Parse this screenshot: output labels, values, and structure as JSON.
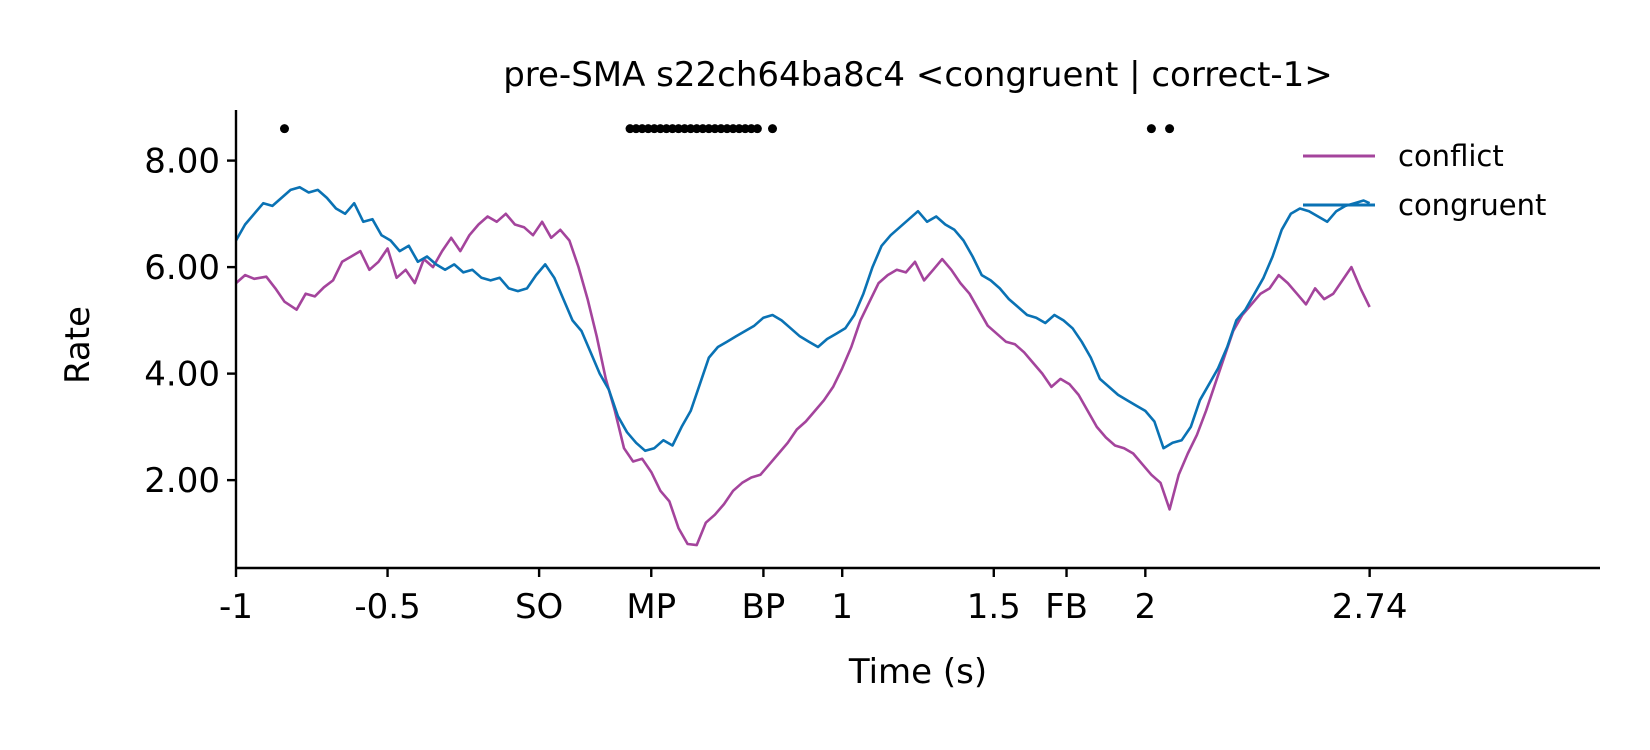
{
  "chart_data": {
    "type": "line",
    "title": "pre-SMA s22ch64ba8c4 <congruent | correct-1>",
    "xlabel": "Time (s)",
    "ylabel": "Rate",
    "xlim": [
      -1,
      3.5
    ],
    "ylim": [
      0.35,
      8.95
    ],
    "x_ticks": [
      {
        "value": -1,
        "label": "-1"
      },
      {
        "value": -0.5,
        "label": "-0.5"
      },
      {
        "value": 0,
        "label": "SO"
      },
      {
        "value": 0.37,
        "label": "MP"
      },
      {
        "value": 0.74,
        "label": "BP"
      },
      {
        "value": 1,
        "label": "1"
      },
      {
        "value": 1.5,
        "label": "1.5"
      },
      {
        "value": 1.74,
        "label": "FB"
      },
      {
        "value": 2,
        "label": "2"
      },
      {
        "value": 2.74,
        "label": "2.74"
      }
    ],
    "y_ticks": [
      {
        "value": 2,
        "label": "2.00"
      },
      {
        "value": 4,
        "label": "4.00"
      },
      {
        "value": 6,
        "label": "6.00"
      },
      {
        "value": 8,
        "label": "8.00"
      }
    ],
    "legend": {
      "placement": "top-right"
    },
    "significance_markers": {
      "y": 8.6,
      "x": [
        -0.84,
        0.3,
        0.32,
        0.34,
        0.36,
        0.38,
        0.4,
        0.42,
        0.44,
        0.46,
        0.48,
        0.5,
        0.52,
        0.54,
        0.56,
        0.58,
        0.6,
        0.62,
        0.64,
        0.66,
        0.68,
        0.7,
        0.72,
        0.77,
        2.02,
        2.08
      ]
    },
    "series": [
      {
        "name": "conflict",
        "color": "#a4449c",
        "points": [
          [
            -1.0,
            5.7
          ],
          [
            -0.97,
            5.85
          ],
          [
            -0.94,
            5.78
          ],
          [
            -0.9,
            5.82
          ],
          [
            -0.87,
            5.6
          ],
          [
            -0.84,
            5.35
          ],
          [
            -0.8,
            5.2
          ],
          [
            -0.77,
            5.5
          ],
          [
            -0.74,
            5.45
          ],
          [
            -0.71,
            5.62
          ],
          [
            -0.68,
            5.75
          ],
          [
            -0.65,
            6.1
          ],
          [
            -0.62,
            6.2
          ],
          [
            -0.59,
            6.3
          ],
          [
            -0.56,
            5.95
          ],
          [
            -0.53,
            6.1
          ],
          [
            -0.5,
            6.35
          ],
          [
            -0.47,
            5.8
          ],
          [
            -0.44,
            5.95
          ],
          [
            -0.41,
            5.7
          ],
          [
            -0.38,
            6.15
          ],
          [
            -0.35,
            6.0
          ],
          [
            -0.32,
            6.3
          ],
          [
            -0.29,
            6.55
          ],
          [
            -0.26,
            6.3
          ],
          [
            -0.23,
            6.6
          ],
          [
            -0.2,
            6.8
          ],
          [
            -0.17,
            6.95
          ],
          [
            -0.14,
            6.85
          ],
          [
            -0.11,
            7.0
          ],
          [
            -0.08,
            6.8
          ],
          [
            -0.05,
            6.75
          ],
          [
            -0.02,
            6.6
          ],
          [
            0.01,
            6.85
          ],
          [
            0.04,
            6.55
          ],
          [
            0.07,
            6.7
          ],
          [
            0.1,
            6.5
          ],
          [
            0.13,
            6.0
          ],
          [
            0.16,
            5.4
          ],
          [
            0.19,
            4.7
          ],
          [
            0.22,
            3.9
          ],
          [
            0.25,
            3.3
          ],
          [
            0.28,
            2.6
          ],
          [
            0.31,
            2.35
          ],
          [
            0.34,
            2.4
          ],
          [
            0.37,
            2.15
          ],
          [
            0.4,
            1.8
          ],
          [
            0.43,
            1.6
          ],
          [
            0.46,
            1.1
          ],
          [
            0.49,
            0.8
          ],
          [
            0.52,
            0.78
          ],
          [
            0.55,
            1.2
          ],
          [
            0.58,
            1.35
          ],
          [
            0.61,
            1.55
          ],
          [
            0.64,
            1.8
          ],
          [
            0.67,
            1.95
          ],
          [
            0.7,
            2.05
          ],
          [
            0.73,
            2.1
          ],
          [
            0.76,
            2.3
          ],
          [
            0.79,
            2.5
          ],
          [
            0.82,
            2.7
          ],
          [
            0.85,
            2.95
          ],
          [
            0.88,
            3.1
          ],
          [
            0.91,
            3.3
          ],
          [
            0.94,
            3.5
          ],
          [
            0.97,
            3.75
          ],
          [
            1.0,
            4.1
          ],
          [
            1.03,
            4.5
          ],
          [
            1.06,
            5.0
          ],
          [
            1.09,
            5.35
          ],
          [
            1.12,
            5.7
          ],
          [
            1.15,
            5.85
          ],
          [
            1.18,
            5.95
          ],
          [
            1.21,
            5.9
          ],
          [
            1.24,
            6.1
          ],
          [
            1.27,
            5.75
          ],
          [
            1.3,
            5.95
          ],
          [
            1.33,
            6.15
          ],
          [
            1.36,
            5.95
          ],
          [
            1.39,
            5.7
          ],
          [
            1.42,
            5.5
          ],
          [
            1.45,
            5.2
          ],
          [
            1.48,
            4.9
          ],
          [
            1.51,
            4.75
          ],
          [
            1.54,
            4.6
          ],
          [
            1.57,
            4.55
          ],
          [
            1.6,
            4.4
          ],
          [
            1.63,
            4.2
          ],
          [
            1.66,
            4.0
          ],
          [
            1.69,
            3.75
          ],
          [
            1.72,
            3.9
          ],
          [
            1.75,
            3.8
          ],
          [
            1.78,
            3.6
          ],
          [
            1.81,
            3.3
          ],
          [
            1.84,
            3.0
          ],
          [
            1.87,
            2.8
          ],
          [
            1.9,
            2.65
          ],
          [
            1.93,
            2.6
          ],
          [
            1.96,
            2.5
          ],
          [
            1.99,
            2.3
          ],
          [
            2.02,
            2.1
          ],
          [
            2.05,
            1.95
          ],
          [
            2.08,
            1.45
          ],
          [
            2.11,
            2.1
          ],
          [
            2.14,
            2.5
          ],
          [
            2.17,
            2.85
          ],
          [
            2.2,
            3.3
          ],
          [
            2.23,
            3.8
          ],
          [
            2.26,
            4.3
          ],
          [
            2.29,
            4.8
          ],
          [
            2.32,
            5.1
          ],
          [
            2.35,
            5.3
          ],
          [
            2.38,
            5.5
          ],
          [
            2.41,
            5.6
          ],
          [
            2.44,
            5.85
          ],
          [
            2.47,
            5.7
          ],
          [
            2.5,
            5.5
          ],
          [
            2.53,
            5.3
          ],
          [
            2.56,
            5.6
          ],
          [
            2.59,
            5.4
          ],
          [
            2.62,
            5.5
          ],
          [
            2.65,
            5.75
          ],
          [
            2.68,
            6.0
          ],
          [
            2.71,
            5.6
          ],
          [
            2.74,
            5.25
          ]
        ]
      },
      {
        "name": "congruent",
        "color": "#0a72b4",
        "points": [
          [
            -1.0,
            6.5
          ],
          [
            -0.97,
            6.8
          ],
          [
            -0.94,
            7.0
          ],
          [
            -0.91,
            7.2
          ],
          [
            -0.88,
            7.15
          ],
          [
            -0.85,
            7.3
          ],
          [
            -0.82,
            7.45
          ],
          [
            -0.79,
            7.5
          ],
          [
            -0.76,
            7.4
          ],
          [
            -0.73,
            7.45
          ],
          [
            -0.7,
            7.3
          ],
          [
            -0.67,
            7.1
          ],
          [
            -0.64,
            7.0
          ],
          [
            -0.61,
            7.2
          ],
          [
            -0.58,
            6.85
          ],
          [
            -0.55,
            6.9
          ],
          [
            -0.52,
            6.6
          ],
          [
            -0.49,
            6.5
          ],
          [
            -0.46,
            6.3
          ],
          [
            -0.43,
            6.4
          ],
          [
            -0.4,
            6.1
          ],
          [
            -0.37,
            6.2
          ],
          [
            -0.34,
            6.05
          ],
          [
            -0.31,
            5.95
          ],
          [
            -0.28,
            6.05
          ],
          [
            -0.25,
            5.9
          ],
          [
            -0.22,
            5.95
          ],
          [
            -0.19,
            5.8
          ],
          [
            -0.16,
            5.75
          ],
          [
            -0.13,
            5.8
          ],
          [
            -0.1,
            5.6
          ],
          [
            -0.07,
            5.55
          ],
          [
            -0.04,
            5.6
          ],
          [
            -0.01,
            5.85
          ],
          [
            0.02,
            6.05
          ],
          [
            0.05,
            5.8
          ],
          [
            0.08,
            5.4
          ],
          [
            0.11,
            5.0
          ],
          [
            0.14,
            4.8
          ],
          [
            0.17,
            4.4
          ],
          [
            0.2,
            4.0
          ],
          [
            0.23,
            3.7
          ],
          [
            0.26,
            3.2
          ],
          [
            0.29,
            2.9
          ],
          [
            0.32,
            2.7
          ],
          [
            0.35,
            2.55
          ],
          [
            0.38,
            2.6
          ],
          [
            0.41,
            2.75
          ],
          [
            0.44,
            2.65
          ],
          [
            0.47,
            3.0
          ],
          [
            0.5,
            3.3
          ],
          [
            0.53,
            3.8
          ],
          [
            0.56,
            4.3
          ],
          [
            0.59,
            4.5
          ],
          [
            0.62,
            4.6
          ],
          [
            0.65,
            4.7
          ],
          [
            0.68,
            4.8
          ],
          [
            0.71,
            4.9
          ],
          [
            0.74,
            5.05
          ],
          [
            0.77,
            5.1
          ],
          [
            0.8,
            5.0
          ],
          [
            0.83,
            4.85
          ],
          [
            0.86,
            4.7
          ],
          [
            0.89,
            4.6
          ],
          [
            0.92,
            4.5
          ],
          [
            0.95,
            4.65
          ],
          [
            0.98,
            4.75
          ],
          [
            1.01,
            4.85
          ],
          [
            1.04,
            5.1
          ],
          [
            1.07,
            5.5
          ],
          [
            1.1,
            6.0
          ],
          [
            1.13,
            6.4
          ],
          [
            1.16,
            6.6
          ],
          [
            1.19,
            6.75
          ],
          [
            1.22,
            6.9
          ],
          [
            1.25,
            7.05
          ],
          [
            1.28,
            6.85
          ],
          [
            1.31,
            6.95
          ],
          [
            1.34,
            6.8
          ],
          [
            1.37,
            6.7
          ],
          [
            1.4,
            6.5
          ],
          [
            1.43,
            6.2
          ],
          [
            1.46,
            5.85
          ],
          [
            1.49,
            5.75
          ],
          [
            1.52,
            5.6
          ],
          [
            1.55,
            5.4
          ],
          [
            1.58,
            5.25
          ],
          [
            1.61,
            5.1
          ],
          [
            1.64,
            5.05
          ],
          [
            1.67,
            4.95
          ],
          [
            1.7,
            5.1
          ],
          [
            1.73,
            5.0
          ],
          [
            1.76,
            4.85
          ],
          [
            1.79,
            4.6
          ],
          [
            1.82,
            4.3
          ],
          [
            1.85,
            3.9
          ],
          [
            1.88,
            3.75
          ],
          [
            1.91,
            3.6
          ],
          [
            1.94,
            3.5
          ],
          [
            1.97,
            3.4
          ],
          [
            2.0,
            3.3
          ],
          [
            2.03,
            3.1
          ],
          [
            2.06,
            2.6
          ],
          [
            2.09,
            2.7
          ],
          [
            2.12,
            2.75
          ],
          [
            2.15,
            3.0
          ],
          [
            2.18,
            3.5
          ],
          [
            2.21,
            3.8
          ],
          [
            2.24,
            4.1
          ],
          [
            2.27,
            4.5
          ],
          [
            2.3,
            5.0
          ],
          [
            2.33,
            5.2
          ],
          [
            2.36,
            5.5
          ],
          [
            2.39,
            5.8
          ],
          [
            2.42,
            6.2
          ],
          [
            2.45,
            6.7
          ],
          [
            2.48,
            7.0
          ],
          [
            2.51,
            7.1
          ],
          [
            2.54,
            7.05
          ],
          [
            2.57,
            6.95
          ],
          [
            2.6,
            6.85
          ],
          [
            2.63,
            7.05
          ],
          [
            2.66,
            7.15
          ],
          [
            2.69,
            7.2
          ],
          [
            2.72,
            7.25
          ],
          [
            2.74,
            7.2
          ]
        ]
      }
    ]
  }
}
